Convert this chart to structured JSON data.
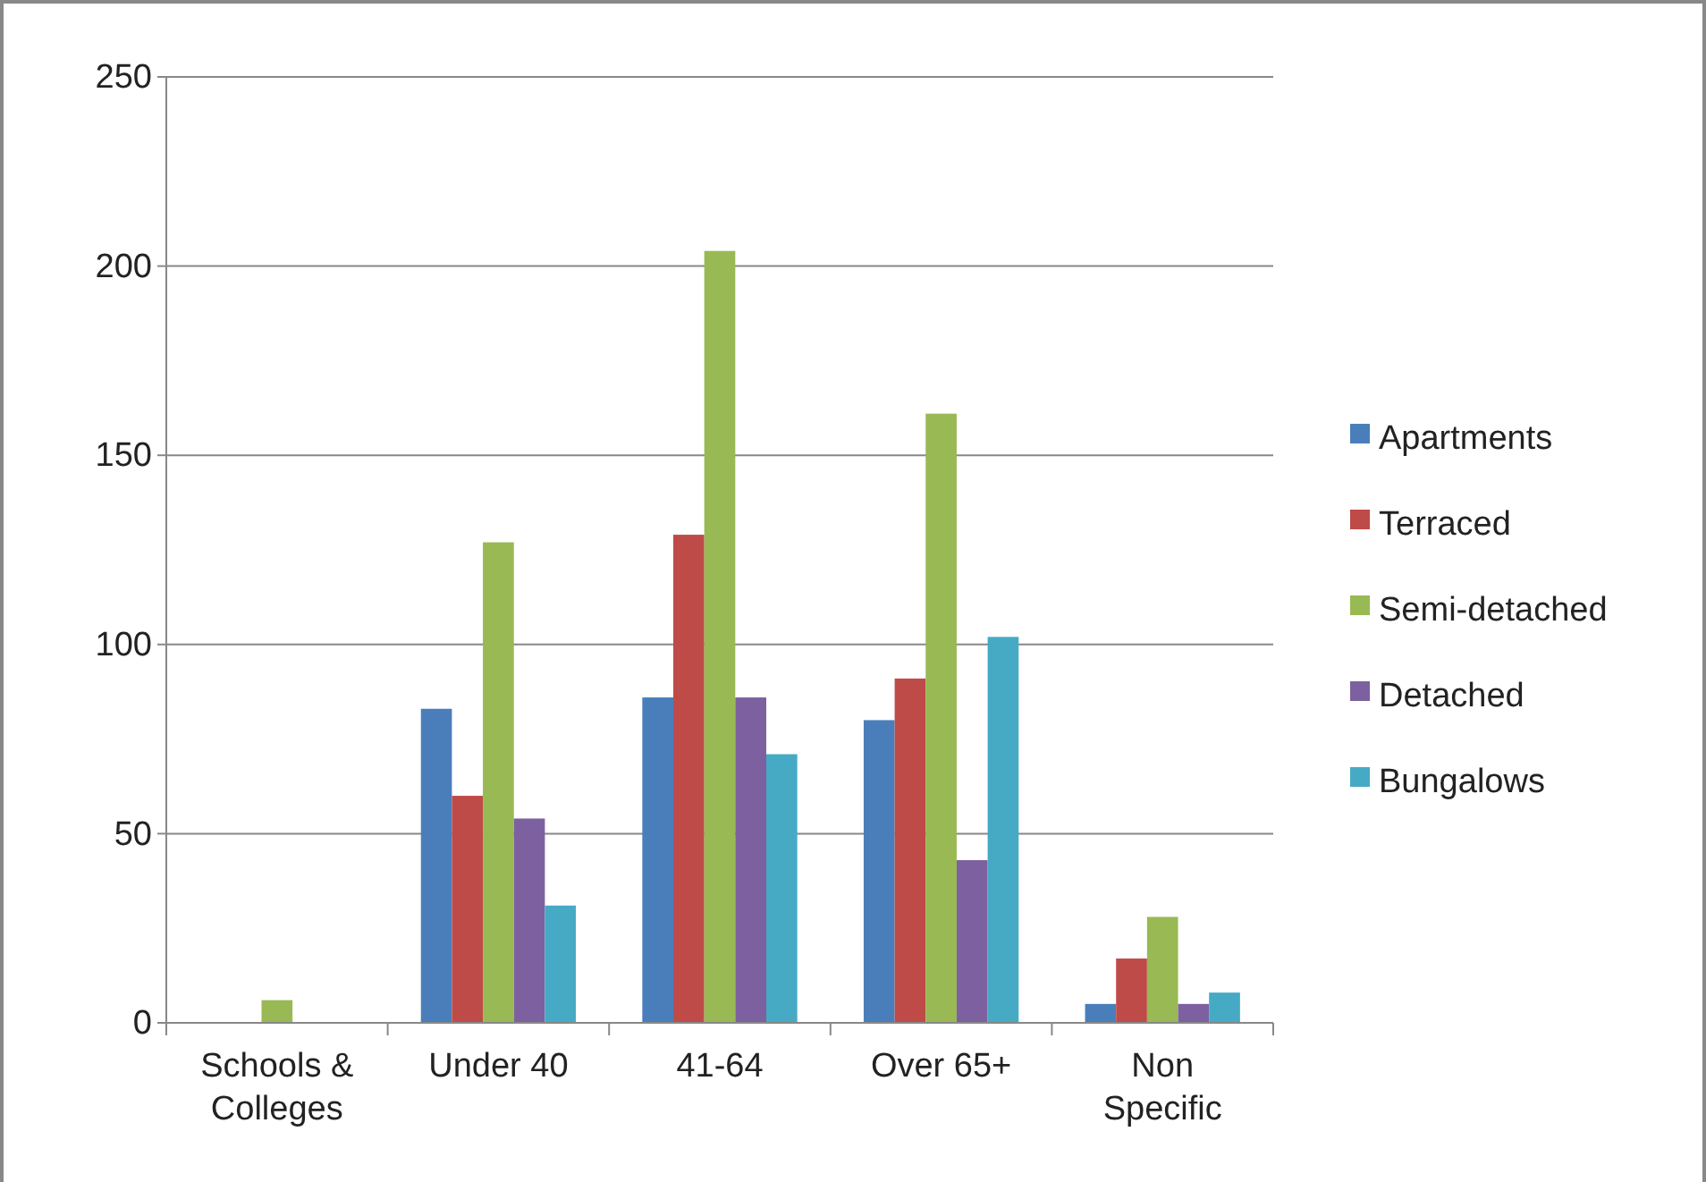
{
  "chart_data": {
    "type": "bar",
    "categories": [
      "Schools & Colleges",
      "Under 40",
      "41-64",
      "Over 65+",
      "Non Specific"
    ],
    "series": [
      {
        "name": "Apartments",
        "color": "#4a7ebb",
        "values": [
          0,
          83,
          86,
          80,
          5
        ]
      },
      {
        "name": "Terraced",
        "color": "#be4b48",
        "values": [
          0,
          60,
          129,
          91,
          17
        ]
      },
      {
        "name": "Semi-detached",
        "color": "#98b954",
        "values": [
          6,
          127,
          204,
          161,
          28
        ]
      },
      {
        "name": "Detached",
        "color": "#7d60a0",
        "values": [
          0,
          54,
          86,
          43,
          5
        ]
      },
      {
        "name": "Bungalows",
        "color": "#46aac5",
        "values": [
          0,
          31,
          71,
          102,
          8
        ]
      }
    ],
    "ylim": [
      0,
      250
    ],
    "yticks": [
      0,
      50,
      100,
      150,
      200,
      250
    ],
    "grid": "y",
    "legend": "right"
  }
}
